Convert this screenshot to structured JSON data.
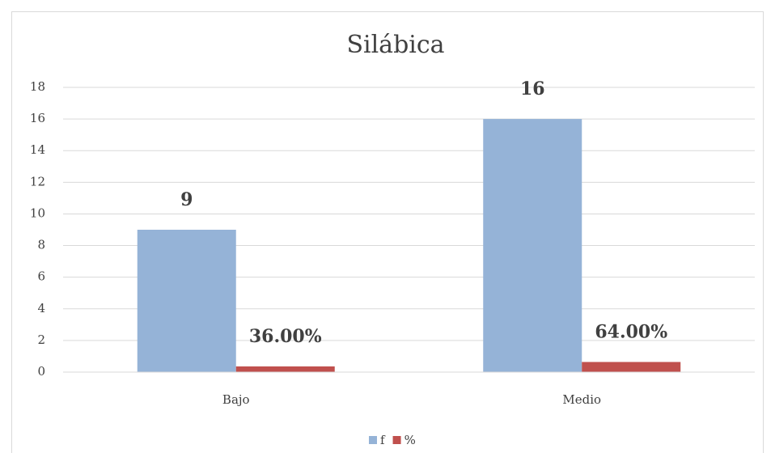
{
  "chart_data": {
    "type": "bar",
    "title": "Silábica",
    "categories": [
      "Bajo",
      "Medio"
    ],
    "series": [
      {
        "name": "f",
        "color": "#95b3d7",
        "values": [
          9,
          16
        ],
        "value_labels": [
          "9",
          "16"
        ]
      },
      {
        "name": "%",
        "color": "#c0504d",
        "values": [
          0.36,
          0.64
        ],
        "value_labels": [
          "36.00%",
          "64.00%"
        ]
      }
    ],
    "ylim": [
      0,
      18
    ],
    "yticks": [
      0,
      2,
      4,
      6,
      8,
      10,
      12,
      14,
      16,
      18
    ],
    "grid": true,
    "legend": "bottom"
  }
}
